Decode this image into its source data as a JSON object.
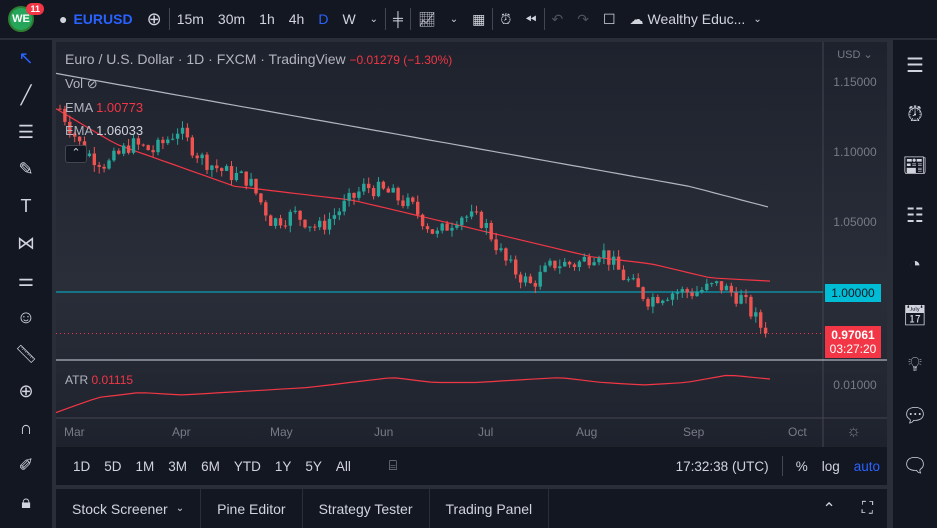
{
  "header": {
    "notifications": "11",
    "logo": "WE",
    "symbol": "EURUSD",
    "intervals": [
      "15m",
      "30m",
      "1h",
      "4h",
      "D",
      "W"
    ],
    "active_interval": "D",
    "layout_name": "Wealthy Educ...",
    "accent": "#2962ff"
  },
  "chart": {
    "title": "Euro / U.S. Dollar · 1D · FXCM · TradingView",
    "change": "−0.01279 (−1.30%)",
    "vol_label": "Vol",
    "ema1_label": "EMA",
    "ema1_value": "1.00773",
    "ema2_label": "EMA",
    "ema2_value": "1.06033",
    "currency": "USD",
    "price_ticks": [
      "1.15000",
      "1.10000",
      "1.05000"
    ],
    "level_label": "1.00000",
    "last_price": "0.97061",
    "countdown": "03:27:20",
    "atr_label": "ATR",
    "atr_value": "0.01115",
    "atr_tick": "0.01000",
    "months": [
      "Mar",
      "Apr",
      "May",
      "Jun",
      "Jul",
      "Aug",
      "Sep",
      "Oct"
    ],
    "up_color": "#26a69a",
    "down_color": "#ef5350"
  },
  "chart_data": {
    "type": "candlestick",
    "y_ticks": [
      1.15,
      1.1,
      1.05,
      1.0
    ],
    "weekly_closes": [
      1.13,
      1.1,
      1.09,
      1.105,
      1.1,
      1.115,
      1.095,
      1.085,
      1.08,
      1.05,
      1.055,
      1.045,
      1.06,
      1.075,
      1.07,
      1.06,
      1.04,
      1.055,
      1.05,
      1.02,
      1.005,
      1.02,
      1.02,
      1.03,
      1.01,
      0.995,
      1.0,
      1.0,
      1.005,
      0.995,
      0.97061
    ],
    "ema_fast": [
      1.13,
      1.105,
      1.09,
      1.075,
      1.07,
      1.065,
      1.055,
      1.045,
      1.035,
      1.025,
      1.02,
      1.01,
      1.00773
    ],
    "ema_slow": [
      1.155,
      1.145,
      1.135,
      1.125,
      1.115,
      1.105,
      1.095,
      1.085,
      1.075,
      1.06033
    ],
    "atr": [
      0.0045,
      0.0075,
      0.0085,
      0.008,
      0.0085,
      0.009,
      0.0095,
      0.0105,
      0.0115,
      0.0105,
      0.0105,
      0.011,
      0.0115,
      0.0105,
      0.01,
      0.0105,
      0.012,
      0.0112
    ]
  },
  "bottom": {
    "ranges": [
      "1D",
      "5D",
      "1M",
      "3M",
      "6M",
      "YTD",
      "1Y",
      "5Y",
      "All"
    ],
    "time": "17:32:38 (UTC)",
    "pct": "%",
    "log": "log",
    "auto": "auto"
  },
  "panels": [
    "Stock Screener",
    "Pine Editor",
    "Strategy Tester",
    "Trading Panel"
  ]
}
